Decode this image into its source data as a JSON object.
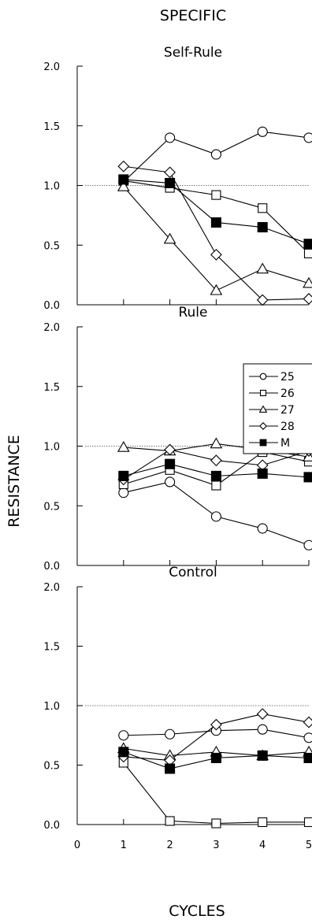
{
  "figure": {
    "title": "SPECIFIC",
    "ylabel": "RESISTANCE",
    "xlabel": "CYCLES",
    "x_ticks": [
      "0",
      "1",
      "2",
      "3",
      "4",
      "5"
    ],
    "y_ticks": [
      "0.0",
      "0.5",
      "1.0",
      "1.5",
      "2.0"
    ],
    "legend": [
      {
        "label": "25",
        "marker": "circle",
        "filled": false
      },
      {
        "label": "26",
        "marker": "square",
        "filled": false
      },
      {
        "label": "27",
        "marker": "triangle",
        "filled": false
      },
      {
        "label": "28",
        "marker": "diamond",
        "filled": false
      },
      {
        "label": "M",
        "marker": "square",
        "filled": true
      }
    ],
    "legend_position": "upper-right of second panel"
  },
  "chart_data": [
    {
      "type": "line",
      "title": "Self-Rule",
      "x": [
        1,
        2,
        3,
        4,
        5
      ],
      "xlim": [
        0,
        5
      ],
      "ylim": [
        0,
        2
      ],
      "reference_line": 1.0,
      "series": [
        {
          "name": "25",
          "values": [
            1.03,
            1.4,
            1.26,
            1.45,
            1.4
          ]
        },
        {
          "name": "26",
          "values": [
            1.04,
            0.98,
            0.92,
            0.81,
            0.43
          ]
        },
        {
          "name": "27",
          "values": [
            0.99,
            0.55,
            0.12,
            0.3,
            0.18
          ]
        },
        {
          "name": "28",
          "values": [
            1.16,
            1.11,
            0.42,
            0.04,
            0.05
          ]
        },
        {
          "name": "M",
          "values": [
            1.05,
            1.02,
            0.69,
            0.65,
            0.51
          ]
        }
      ]
    },
    {
      "type": "line",
      "title": "Rule",
      "x": [
        1,
        2,
        3,
        4,
        5
      ],
      "xlim": [
        0,
        5
      ],
      "ylim": [
        0,
        2
      ],
      "reference_line": 1.0,
      "series": [
        {
          "name": "25",
          "values": [
            0.61,
            0.7,
            0.41,
            0.31,
            0.17
          ]
        },
        {
          "name": "26",
          "values": [
            0.68,
            0.8,
            0.67,
            0.95,
            0.87
          ]
        },
        {
          "name": "27",
          "values": [
            0.99,
            0.96,
            1.02,
            0.97,
            0.91
          ]
        },
        {
          "name": "28",
          "values": [
            0.72,
            0.97,
            0.88,
            0.84,
            0.96
          ]
        },
        {
          "name": "M",
          "values": [
            0.75,
            0.85,
            0.75,
            0.77,
            0.74
          ]
        }
      ]
    },
    {
      "type": "line",
      "title": "Control",
      "x": [
        1,
        2,
        3,
        4,
        5
      ],
      "xlim": [
        0,
        5
      ],
      "ylim": [
        0,
        2
      ],
      "reference_line": 1.0,
      "series": [
        {
          "name": "25",
          "values": [
            0.75,
            0.76,
            0.79,
            0.8,
            0.73
          ]
        },
        {
          "name": "26",
          "values": [
            0.52,
            0.03,
            0.01,
            0.02,
            0.02
          ]
        },
        {
          "name": "27",
          "values": [
            0.64,
            0.58,
            0.61,
            0.58,
            0.61
          ]
        },
        {
          "name": "28",
          "values": [
            0.57,
            0.54,
            0.84,
            0.93,
            0.86
          ]
        },
        {
          "name": "M",
          "values": [
            0.61,
            0.47,
            0.56,
            0.58,
            0.56
          ]
        }
      ]
    }
  ]
}
